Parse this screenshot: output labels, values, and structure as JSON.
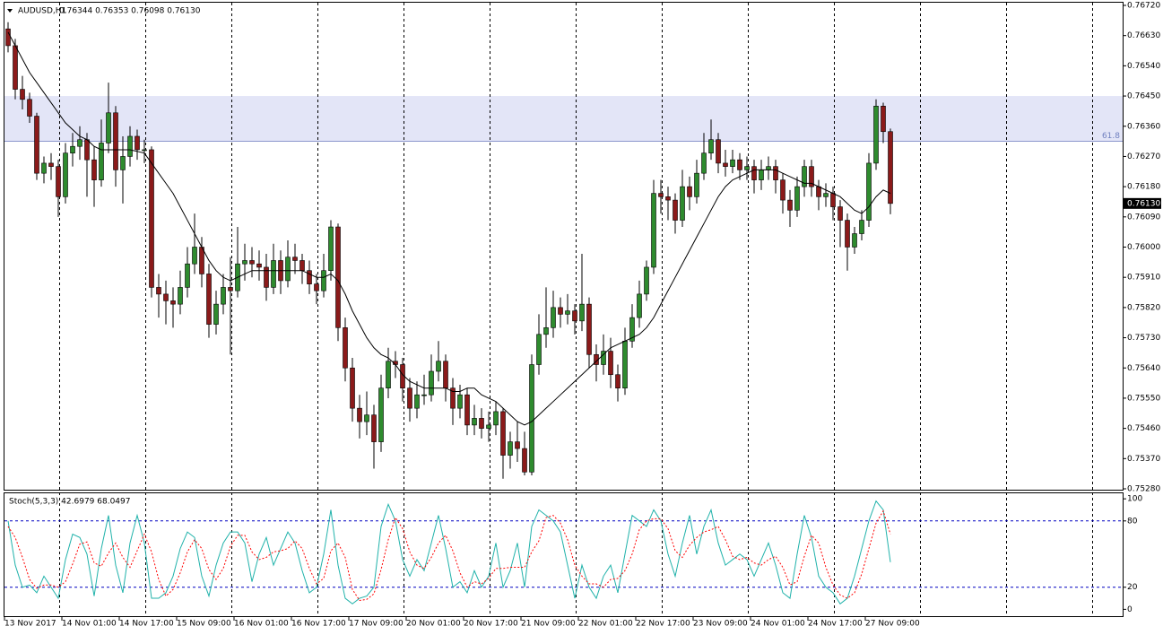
{
  "chart_data": {
    "type": "candlestick",
    "title": "AUDUSD,H1",
    "ohlc_label": "0.76344 0.76353 0.76098 0.76130",
    "ylim": [
      0.7528,
      0.7672
    ],
    "yticks": [
      {
        "value": 0.7672,
        "label": "0.76720"
      },
      {
        "value": 0.7663,
        "label": "0.76630"
      },
      {
        "value": 0.7654,
        "label": "0.76540"
      },
      {
        "value": 0.7645,
        "label": "0.76450"
      },
      {
        "value": 0.7636,
        "label": "0.76360"
      },
      {
        "value": 0.7627,
        "label": "0.76270"
      },
      {
        "value": 0.7618,
        "label": "0.76180"
      },
      {
        "value": 0.7609,
        "label": "0.76090"
      },
      {
        "value": 0.76,
        "label": "0.76000"
      },
      {
        "value": 0.7591,
        "label": "0.75910"
      },
      {
        "value": 0.7582,
        "label": "0.75820"
      },
      {
        "value": 0.7573,
        "label": "0.75730"
      },
      {
        "value": 0.7564,
        "label": "0.75640"
      },
      {
        "value": 0.7555,
        "label": "0.75550"
      },
      {
        "value": 0.7546,
        "label": "0.75460"
      },
      {
        "value": 0.7537,
        "label": "0.75370"
      },
      {
        "value": 0.7528,
        "label": "0.75280"
      }
    ],
    "last_price": {
      "value": 0.7613,
      "label": "0.76130"
    },
    "zone": [
      0.7645,
      0.76315
    ],
    "zone_color": "#e3e5f7",
    "fib_level": {
      "value": 0.76315,
      "label": "61.8"
    },
    "up_color": "#2e8b2e",
    "down_color": "#8b1a1a",
    "ma_color": "#000000",
    "x_labels": [
      "13 Nov 2017",
      "14 Nov 01:00",
      "14 Nov 17:00",
      "15 Nov 09:00",
      "16 Nov 01:00",
      "16 Nov 17:00",
      "17 Nov 09:00",
      "20 Nov 01:00",
      "20 Nov 17:00",
      "21 Nov 09:00",
      "22 Nov 01:00",
      "22 Nov 17:00",
      "23 Nov 09:00",
      "24 Nov 01:00",
      "24 Nov 17:00",
      "27 Nov 09:00"
    ],
    "candles": [
      [
        0.7665,
        0.7667,
        0.7658,
        0.766
      ],
      [
        0.766,
        0.7662,
        0.7644,
        0.7647
      ],
      [
        0.7647,
        0.7651,
        0.7641,
        0.7644
      ],
      [
        0.7644,
        0.7646,
        0.7637,
        0.7639
      ],
      [
        0.7639,
        0.764,
        0.762,
        0.7622
      ],
      [
        0.7622,
        0.7627,
        0.7619,
        0.7625
      ],
      [
        0.7625,
        0.7628,
        0.762,
        0.7624
      ],
      [
        0.7624,
        0.7626,
        0.7609,
        0.7615
      ],
      [
        0.7615,
        0.7631,
        0.7613,
        0.7628
      ],
      [
        0.7628,
        0.7634,
        0.7624,
        0.763
      ],
      [
        0.763,
        0.7636,
        0.7626,
        0.7632
      ],
      [
        0.7632,
        0.7634,
        0.7615,
        0.7626
      ],
      [
        0.7626,
        0.763,
        0.7612,
        0.762
      ],
      [
        0.762,
        0.7638,
        0.7618,
        0.7631
      ],
      [
        0.7631,
        0.7649,
        0.7628,
        0.764
      ],
      [
        0.764,
        0.7642,
        0.7618,
        0.7623
      ],
      [
        0.7623,
        0.7633,
        0.7613,
        0.7627
      ],
      [
        0.7627,
        0.7636,
        0.7624,
        0.7633
      ],
      [
        0.7633,
        0.7635,
        0.7626,
        0.7629
      ],
      [
        0.7629,
        0.7632,
        0.7625,
        0.7629
      ],
      [
        0.7629,
        0.763,
        0.7585,
        0.7588
      ],
      [
        0.7588,
        0.7592,
        0.7579,
        0.7586
      ],
      [
        0.7586,
        0.759,
        0.7577,
        0.7584
      ],
      [
        0.7584,
        0.7588,
        0.7576,
        0.7583
      ],
      [
        0.7583,
        0.7593,
        0.758,
        0.7588
      ],
      [
        0.7588,
        0.76,
        0.7585,
        0.7595
      ],
      [
        0.7595,
        0.761,
        0.7592,
        0.76
      ],
      [
        0.76,
        0.7603,
        0.7588,
        0.7592
      ],
      [
        0.7592,
        0.7595,
        0.7573,
        0.7577
      ],
      [
        0.7577,
        0.7587,
        0.7574,
        0.7583
      ],
      [
        0.7583,
        0.7592,
        0.758,
        0.7588
      ],
      [
        0.7588,
        0.7597,
        0.7568,
        0.7587
      ],
      [
        0.7587,
        0.7606,
        0.7585,
        0.7595
      ],
      [
        0.7595,
        0.7601,
        0.759,
        0.7596
      ],
      [
        0.7596,
        0.76,
        0.7591,
        0.7595
      ],
      [
        0.7595,
        0.7599,
        0.759,
        0.7594
      ],
      [
        0.7594,
        0.7598,
        0.7584,
        0.7588
      ],
      [
        0.7588,
        0.7601,
        0.7586,
        0.7596
      ],
      [
        0.7596,
        0.7599,
        0.7586,
        0.759
      ],
      [
        0.759,
        0.7602,
        0.7588,
        0.7597
      ],
      [
        0.7597,
        0.7601,
        0.7592,
        0.7596
      ],
      [
        0.7596,
        0.7598,
        0.7589,
        0.7593
      ],
      [
        0.7593,
        0.7596,
        0.7586,
        0.7589
      ],
      [
        0.7589,
        0.7592,
        0.7583,
        0.7587
      ],
      [
        0.7587,
        0.7598,
        0.7585,
        0.7593
      ],
      [
        0.7593,
        0.7608,
        0.759,
        0.7606
      ],
      [
        0.7606,
        0.7607,
        0.7572,
        0.7576
      ],
      [
        0.7576,
        0.7579,
        0.756,
        0.7564
      ],
      [
        0.7564,
        0.7567,
        0.7548,
        0.7552
      ],
      [
        0.7552,
        0.7556,
        0.7543,
        0.7548
      ],
      [
        0.7548,
        0.7557,
        0.7544,
        0.755
      ],
      [
        0.755,
        0.7553,
        0.7534,
        0.7542
      ],
      [
        0.7542,
        0.7562,
        0.7539,
        0.7558
      ],
      [
        0.7558,
        0.757,
        0.7555,
        0.7566
      ],
      [
        0.7566,
        0.7569,
        0.7561,
        0.7565
      ],
      [
        0.7565,
        0.7567,
        0.7554,
        0.7558
      ],
      [
        0.7558,
        0.7561,
        0.7548,
        0.7552
      ],
      [
        0.7552,
        0.756,
        0.7549,
        0.7556
      ],
      [
        0.7556,
        0.7562,
        0.7553,
        0.7556
      ],
      [
        0.7556,
        0.7568,
        0.7554,
        0.7563
      ],
      [
        0.7563,
        0.7572,
        0.756,
        0.7566
      ],
      [
        0.7566,
        0.7568,
        0.7554,
        0.7558
      ],
      [
        0.7558,
        0.7561,
        0.7547,
        0.7552
      ],
      [
        0.7552,
        0.7559,
        0.7549,
        0.7556
      ],
      [
        0.7556,
        0.7558,
        0.7544,
        0.7547
      ],
      [
        0.7547,
        0.7553,
        0.7544,
        0.7549
      ],
      [
        0.7549,
        0.7552,
        0.7543,
        0.7546
      ],
      [
        0.7546,
        0.7551,
        0.7542,
        0.7547
      ],
      [
        0.7547,
        0.7554,
        0.7544,
        0.7551
      ],
      [
        0.7551,
        0.7552,
        0.7531,
        0.7538
      ],
      [
        0.7538,
        0.7545,
        0.7534,
        0.7542
      ],
      [
        0.7542,
        0.7548,
        0.7536,
        0.754
      ],
      [
        0.754,
        0.7545,
        0.7532,
        0.7533
      ],
      [
        0.7533,
        0.7568,
        0.7532,
        0.7565
      ],
      [
        0.7565,
        0.758,
        0.7562,
        0.7574
      ],
      [
        0.7574,
        0.7588,
        0.757,
        0.7576
      ],
      [
        0.7576,
        0.7587,
        0.7573,
        0.7582
      ],
      [
        0.7582,
        0.7585,
        0.7576,
        0.758
      ],
      [
        0.758,
        0.7586,
        0.7577,
        0.7581
      ],
      [
        0.7581,
        0.7583,
        0.7574,
        0.7578
      ],
      [
        0.7578,
        0.7598,
        0.7575,
        0.7583
      ],
      [
        0.7583,
        0.7585,
        0.7564,
        0.7568
      ],
      [
        0.7568,
        0.7571,
        0.756,
        0.7565
      ],
      [
        0.7565,
        0.7574,
        0.7562,
        0.7569
      ],
      [
        0.7569,
        0.7573,
        0.7558,
        0.7562
      ],
      [
        0.7562,
        0.7565,
        0.7554,
        0.7558
      ],
      [
        0.7558,
        0.7576,
        0.7556,
        0.7572
      ],
      [
        0.7572,
        0.7583,
        0.757,
        0.7579
      ],
      [
        0.7579,
        0.759,
        0.7576,
        0.7586
      ],
      [
        0.7586,
        0.7596,
        0.7584,
        0.7594
      ],
      [
        0.7594,
        0.762,
        0.7592,
        0.7616
      ],
      [
        0.7616,
        0.762,
        0.761,
        0.7615
      ],
      [
        0.7615,
        0.7618,
        0.7608,
        0.7614
      ],
      [
        0.7614,
        0.7616,
        0.7604,
        0.7608
      ],
      [
        0.7608,
        0.7623,
        0.7606,
        0.7618
      ],
      [
        0.7618,
        0.7621,
        0.7611,
        0.7615
      ],
      [
        0.7615,
        0.7626,
        0.7613,
        0.7622
      ],
      [
        0.7622,
        0.7634,
        0.762,
        0.7628
      ],
      [
        0.7628,
        0.7638,
        0.7626,
        0.7632
      ],
      [
        0.7632,
        0.7634,
        0.7622,
        0.7625
      ],
      [
        0.7625,
        0.7629,
        0.7621,
        0.7624
      ],
      [
        0.7624,
        0.7629,
        0.7622,
        0.7626
      ],
      [
        0.7626,
        0.7628,
        0.762,
        0.7623
      ],
      [
        0.7623,
        0.7627,
        0.762,
        0.7624
      ],
      [
        0.7624,
        0.7626,
        0.7616,
        0.762
      ],
      [
        0.762,
        0.7626,
        0.7617,
        0.7623
      ],
      [
        0.7623,
        0.7627,
        0.762,
        0.7624
      ],
      [
        0.7624,
        0.7626,
        0.7616,
        0.762
      ],
      [
        0.762,
        0.7622,
        0.761,
        0.7614
      ],
      [
        0.7614,
        0.7617,
        0.7606,
        0.7611
      ],
      [
        0.7611,
        0.7621,
        0.7609,
        0.7618
      ],
      [
        0.7618,
        0.7626,
        0.7615,
        0.7624
      ],
      [
        0.7624,
        0.7626,
        0.7615,
        0.7618
      ],
      [
        0.7618,
        0.762,
        0.7611,
        0.7615
      ],
      [
        0.7615,
        0.7619,
        0.7612,
        0.7616
      ],
      [
        0.7616,
        0.7618,
        0.7608,
        0.7612
      ],
      [
        0.7612,
        0.7614,
        0.76,
        0.7608
      ],
      [
        0.7608,
        0.761,
        0.7593,
        0.76
      ],
      [
        0.76,
        0.7606,
        0.7598,
        0.7604
      ],
      [
        0.7604,
        0.7611,
        0.7602,
        0.7608
      ],
      [
        0.7608,
        0.7628,
        0.7606,
        0.7625
      ],
      [
        0.7625,
        0.7644,
        0.7623,
        0.7642
      ],
      [
        0.7642,
        0.7643,
        0.7631,
        0.76344
      ],
      [
        0.76344,
        0.76353,
        0.76098,
        0.7613
      ]
    ],
    "ma": [
      0.7664,
      0.766,
      0.7656,
      0.7652,
      0.7649,
      0.7646,
      0.7643,
      0.764,
      0.7637,
      0.7635,
      0.7633,
      0.7632,
      0.763,
      0.7629,
      0.7629,
      0.7629,
      0.7629,
      0.7629,
      0.76285,
      0.7628,
      0.7625,
      0.7622,
      0.7619,
      0.7616,
      0.7612,
      0.7608,
      0.7604,
      0.76,
      0.7596,
      0.7593,
      0.7591,
      0.759,
      0.7591,
      0.7592,
      0.7593,
      0.7593,
      0.7593,
      0.7593,
      0.7593,
      0.7593,
      0.7593,
      0.7593,
      0.7592,
      0.7591,
      0.7591,
      0.7592,
      0.759,
      0.7586,
      0.7581,
      0.7577,
      0.7573,
      0.757,
      0.7568,
      0.7567,
      0.7565,
      0.7562,
      0.756,
      0.7559,
      0.7558,
      0.7558,
      0.7558,
      0.7558,
      0.7557,
      0.7557,
      0.7558,
      0.7558,
      0.7556,
      0.7555,
      0.7554,
      0.7552,
      0.755,
      0.7548,
      0.7547,
      0.7548,
      0.755,
      0.7552,
      0.7554,
      0.7556,
      0.7558,
      0.756,
      0.7562,
      0.7564,
      0.7566,
      0.7568,
      0.757,
      0.7571,
      0.7572,
      0.7573,
      0.7574,
      0.7576,
      0.7579,
      0.7583,
      0.7587,
      0.7591,
      0.7595,
      0.7599,
      0.7603,
      0.7607,
      0.7611,
      0.7615,
      0.7618,
      0.762,
      0.7621,
      0.7622,
      0.7623,
      0.7623,
      0.7623,
      0.7623,
      0.7622,
      0.7621,
      0.762,
      0.7619,
      0.7619,
      0.7618,
      0.7617,
      0.7616,
      0.7615,
      0.7613,
      0.7611,
      0.761,
      0.7612,
      0.7615,
      0.7617,
      0.7616
    ],
    "stoch": {
      "label": "Stoch(5,3,3) 42.6979 68.0497",
      "ylim": [
        -7,
        105
      ],
      "yticks": [
        0,
        20,
        80,
        100
      ],
      "levels": [
        80,
        20
      ],
      "series": [
        {
          "color": "#20b2aa",
          "values": [
            80,
            40,
            20,
            22,
            15,
            30,
            20,
            10,
            45,
            68,
            65,
            50,
            12,
            55,
            85,
            40,
            15,
            60,
            85,
            60,
            10,
            10,
            15,
            30,
            55,
            70,
            65,
            30,
            12,
            40,
            60,
            70,
            70,
            60,
            25,
            50,
            65,
            40,
            55,
            70,
            60,
            35,
            15,
            20,
            50,
            90,
            40,
            10,
            5,
            10,
            12,
            20,
            75,
            95,
            80,
            45,
            30,
            45,
            35,
            60,
            85,
            55,
            20,
            25,
            15,
            35,
            20,
            30,
            60,
            20,
            35,
            60,
            20,
            75,
            90,
            85,
            80,
            70,
            40,
            10,
            40,
            20,
            10,
            30,
            40,
            15,
            50,
            85,
            80,
            75,
            90,
            80,
            50,
            30,
            60,
            85,
            50,
            75,
            90,
            60,
            40,
            45,
            50,
            45,
            30,
            45,
            60,
            40,
            15,
            10,
            50,
            85,
            65,
            30,
            20,
            15,
            5,
            10,
            30,
            55,
            80,
            98,
            90,
            42.6979
          ]
        },
        {
          "color": "#ff0000",
          "values": [
            75,
            65,
            47,
            27,
            19,
            22,
            22,
            20,
            25,
            41,
            59,
            61,
            42,
            39,
            51,
            60,
            47,
            38,
            53,
            68,
            52,
            27,
            12,
            18,
            33,
            52,
            63,
            55,
            36,
            27,
            37,
            57,
            67,
            67,
            52,
            45,
            47,
            52,
            53,
            55,
            62,
            55,
            37,
            23,
            28,
            53,
            60,
            47,
            18,
            8,
            9,
            14,
            36,
            63,
            83,
            73,
            52,
            40,
            37,
            47,
            60,
            67,
            53,
            33,
            20,
            25,
            23,
            28,
            37,
            37,
            38,
            38,
            38,
            52,
            62,
            83,
            85,
            78,
            63,
            40,
            30,
            23,
            23,
            20,
            27,
            28,
            35,
            50,
            72,
            80,
            82,
            82,
            73,
            53,
            47,
            58,
            65,
            70,
            72,
            75,
            63,
            48,
            45,
            47,
            42,
            40,
            45,
            48,
            38,
            22,
            25,
            48,
            67,
            60,
            38,
            22,
            13,
            10,
            15,
            32,
            55,
            78,
            89,
            68.0497
          ]
        }
      ]
    }
  }
}
